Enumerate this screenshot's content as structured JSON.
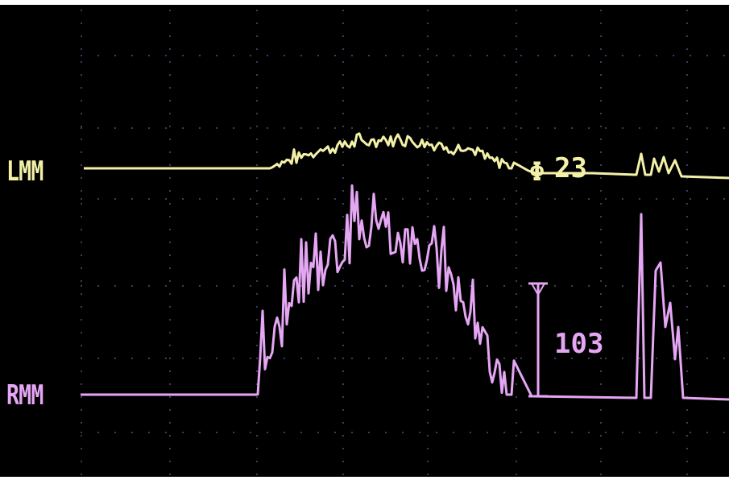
{
  "channels": [
    {
      "id": "lmm",
      "label": "LMM",
      "color": "#f3f0a8"
    },
    {
      "id": "rmm",
      "label": "RMM",
      "color": "#e5a6f4"
    }
  ],
  "readouts": {
    "top_symbol": "Φ",
    "top_value": "23",
    "bottom_value": "103"
  },
  "colors": {
    "background": "#000000",
    "grid_dots": "#3a3f5a"
  }
}
